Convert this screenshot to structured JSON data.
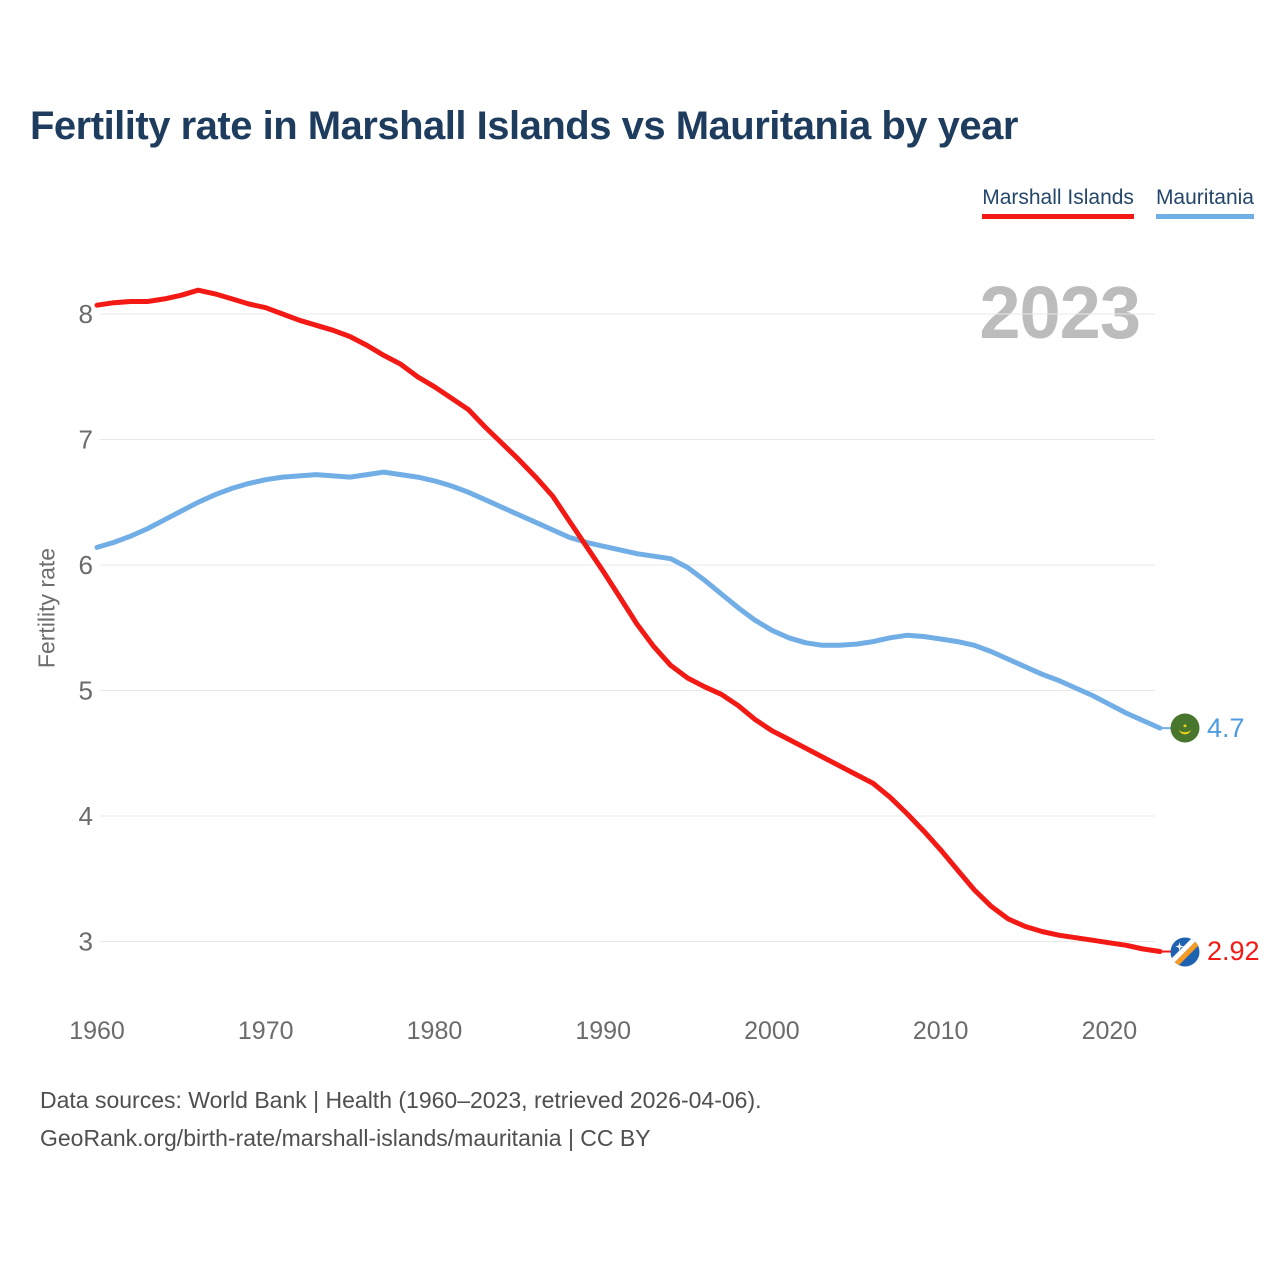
{
  "title": "Fertility rate in Marshall Islands vs Mauritania by year",
  "legend": [
    {
      "label": "Marshall Islands",
      "color": "#f31a15"
    },
    {
      "label": "Mauritania",
      "color": "#72aee6"
    }
  ],
  "watermark": "2023",
  "y_axis_title": "Fertility rate",
  "end_labels": {
    "mauritania": {
      "value": "4.7"
    },
    "marshall_islands": {
      "value": "2.92"
    }
  },
  "footer": {
    "line1": "Data sources: World Bank | Health (1960–2023, retrieved 2026-04-06).",
    "line2": "GeoRank.org/birth-rate/marshall-islands/mauritania | CC BY"
  },
  "chart_data": {
    "type": "line",
    "title": "Fertility rate in Marshall Islands vs Mauritania by year",
    "xlabel": "",
    "ylabel": "Fertility rate",
    "grid": true,
    "legend_position": "top-right",
    "xlim": [
      1960,
      2023
    ],
    "ylim": [
      2.6,
      8.4
    ],
    "x_ticks": [
      1960,
      1970,
      1980,
      1990,
      2000,
      2010,
      2020
    ],
    "y_ticks": [
      3,
      4,
      5,
      6,
      7,
      8
    ],
    "x": [
      1960,
      1961,
      1962,
      1963,
      1964,
      1965,
      1966,
      1967,
      1968,
      1969,
      1970,
      1971,
      1972,
      1973,
      1974,
      1975,
      1976,
      1977,
      1978,
      1979,
      1980,
      1981,
      1982,
      1983,
      1984,
      1985,
      1986,
      1987,
      1988,
      1989,
      1990,
      1991,
      1992,
      1993,
      1994,
      1995,
      1996,
      1997,
      1998,
      1999,
      2000,
      2001,
      2002,
      2003,
      2004,
      2005,
      2006,
      2007,
      2008,
      2009,
      2010,
      2011,
      2012,
      2013,
      2014,
      2015,
      2016,
      2017,
      2018,
      2019,
      2020,
      2021,
      2022,
      2023
    ],
    "series": [
      {
        "name": "Marshall Islands",
        "color": "#f31a15",
        "values": [
          8.07,
          8.09,
          8.1,
          8.1,
          8.12,
          8.15,
          8.19,
          8.16,
          8.12,
          8.08,
          8.05,
          8.0,
          7.95,
          7.91,
          7.87,
          7.82,
          7.75,
          7.67,
          7.6,
          7.5,
          7.42,
          7.33,
          7.24,
          7.1,
          6.97,
          6.84,
          6.7,
          6.55,
          6.35,
          6.15,
          5.95,
          5.74,
          5.53,
          5.35,
          5.2,
          5.1,
          5.03,
          4.97,
          4.88,
          4.77,
          4.68,
          4.61,
          4.54,
          4.47,
          4.4,
          4.33,
          4.26,
          4.15,
          4.02,
          3.88,
          3.73,
          3.57,
          3.41,
          3.28,
          3.18,
          3.12,
          3.08,
          3.05,
          3.03,
          3.01,
          2.99,
          2.97,
          2.94,
          2.92
        ]
      },
      {
        "name": "Mauritania",
        "color": "#72aee6",
        "values": [
          6.14,
          6.18,
          6.23,
          6.29,
          6.36,
          6.43,
          6.5,
          6.56,
          6.61,
          6.65,
          6.68,
          6.7,
          6.71,
          6.72,
          6.71,
          6.7,
          6.72,
          6.74,
          6.72,
          6.7,
          6.67,
          6.63,
          6.58,
          6.52,
          6.46,
          6.4,
          6.34,
          6.28,
          6.22,
          6.18,
          6.15,
          6.12,
          6.09,
          6.07,
          6.05,
          5.98,
          5.88,
          5.77,
          5.66,
          5.56,
          5.48,
          5.42,
          5.38,
          5.36,
          5.36,
          5.37,
          5.39,
          5.42,
          5.44,
          5.43,
          5.41,
          5.39,
          5.36,
          5.31,
          5.25,
          5.19,
          5.13,
          5.08,
          5.02,
          4.96,
          4.89,
          4.82,
          4.76,
          4.7
        ]
      }
    ]
  }
}
